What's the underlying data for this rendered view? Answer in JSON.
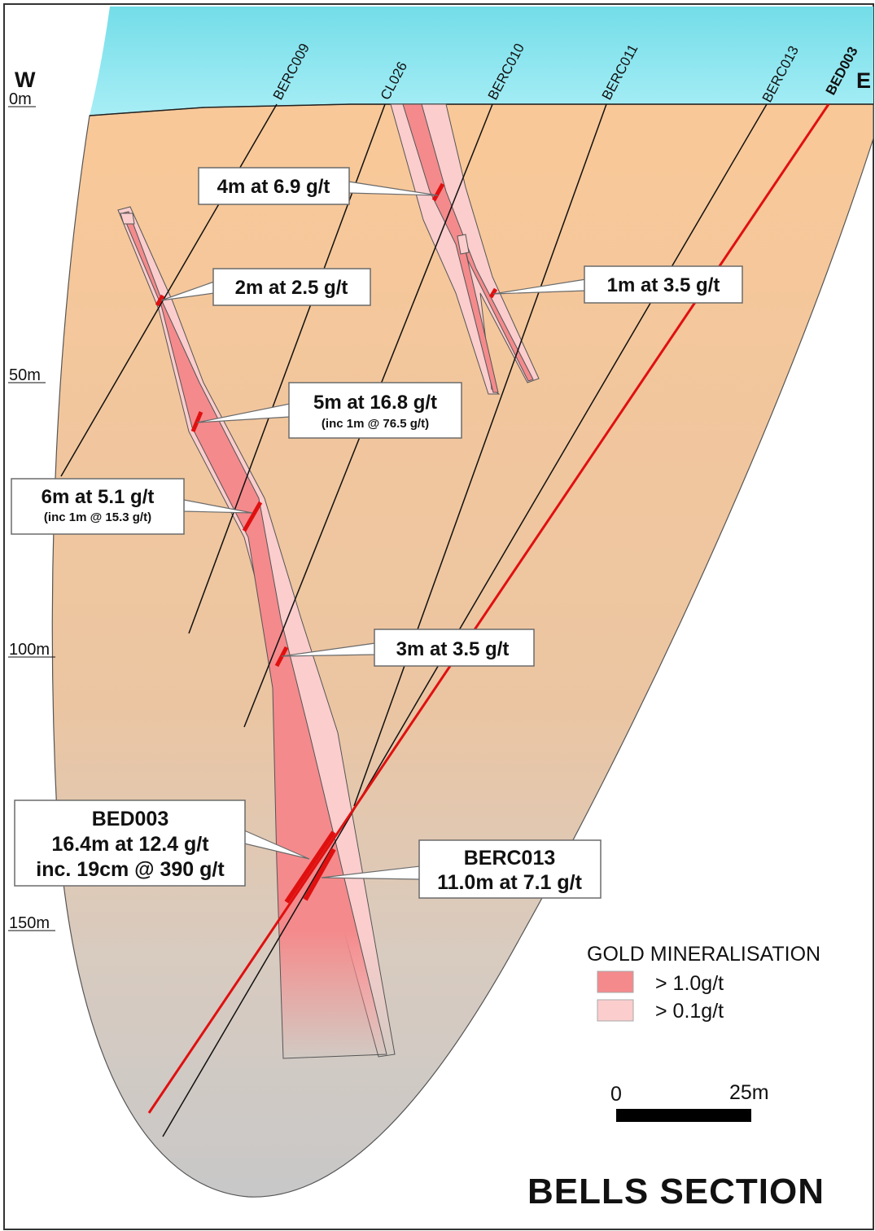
{
  "compass": {
    "west": "W",
    "east": "E"
  },
  "depth_labels": [
    "0m",
    "50m",
    "100m",
    "150m"
  ],
  "drill_holes": [
    "BERC009",
    "CL026",
    "BERC010",
    "BERC011",
    "BERC013",
    "BED003"
  ],
  "intercepts": [
    {
      "id": "4m",
      "main": "4m at 6.9 g/t",
      "sub": ""
    },
    {
      "id": "2m",
      "main": "2m at 2.5 g/t",
      "sub": ""
    },
    {
      "id": "1m",
      "main": "1m at 3.5 g/t",
      "sub": ""
    },
    {
      "id": "5m",
      "main": "5m at 16.8 g/t",
      "sub": "(inc 1m @ 76.5 g/t)"
    },
    {
      "id": "6m",
      "main": "6m at 5.1 g/t",
      "sub": "(inc 1m @ 15.3 g/t)"
    },
    {
      "id": "3m",
      "main": "3m at 3.5 g/t",
      "sub": ""
    }
  ],
  "bed003_box": {
    "line1": "BED003",
    "line2": "16.4m at 12.4 g/t",
    "line3": "inc. 19cm @ 390 g/t"
  },
  "berc013_box": {
    "line1": "BERC013",
    "line2": "11.0m at 7.1 g/t"
  },
  "legend": {
    "title": "GOLD MINERALISATION",
    "items": [
      {
        "label": "> 1.0g/t",
        "color": "#f48a8c"
      },
      {
        "label": "> 0.1g/t",
        "color": "#fbcdcd"
      }
    ]
  },
  "scale": {
    "start": "0",
    "end": "25m"
  },
  "title": "BELLS SECTION",
  "colors": {
    "sky": "#8ee6f2",
    "ground_top": "#f9c898",
    "ground_bottom": "#cdcdcd",
    "high_grade": "#f48a8c",
    "low_grade": "#fbcdcd",
    "bed003_trace": "#e01010"
  }
}
